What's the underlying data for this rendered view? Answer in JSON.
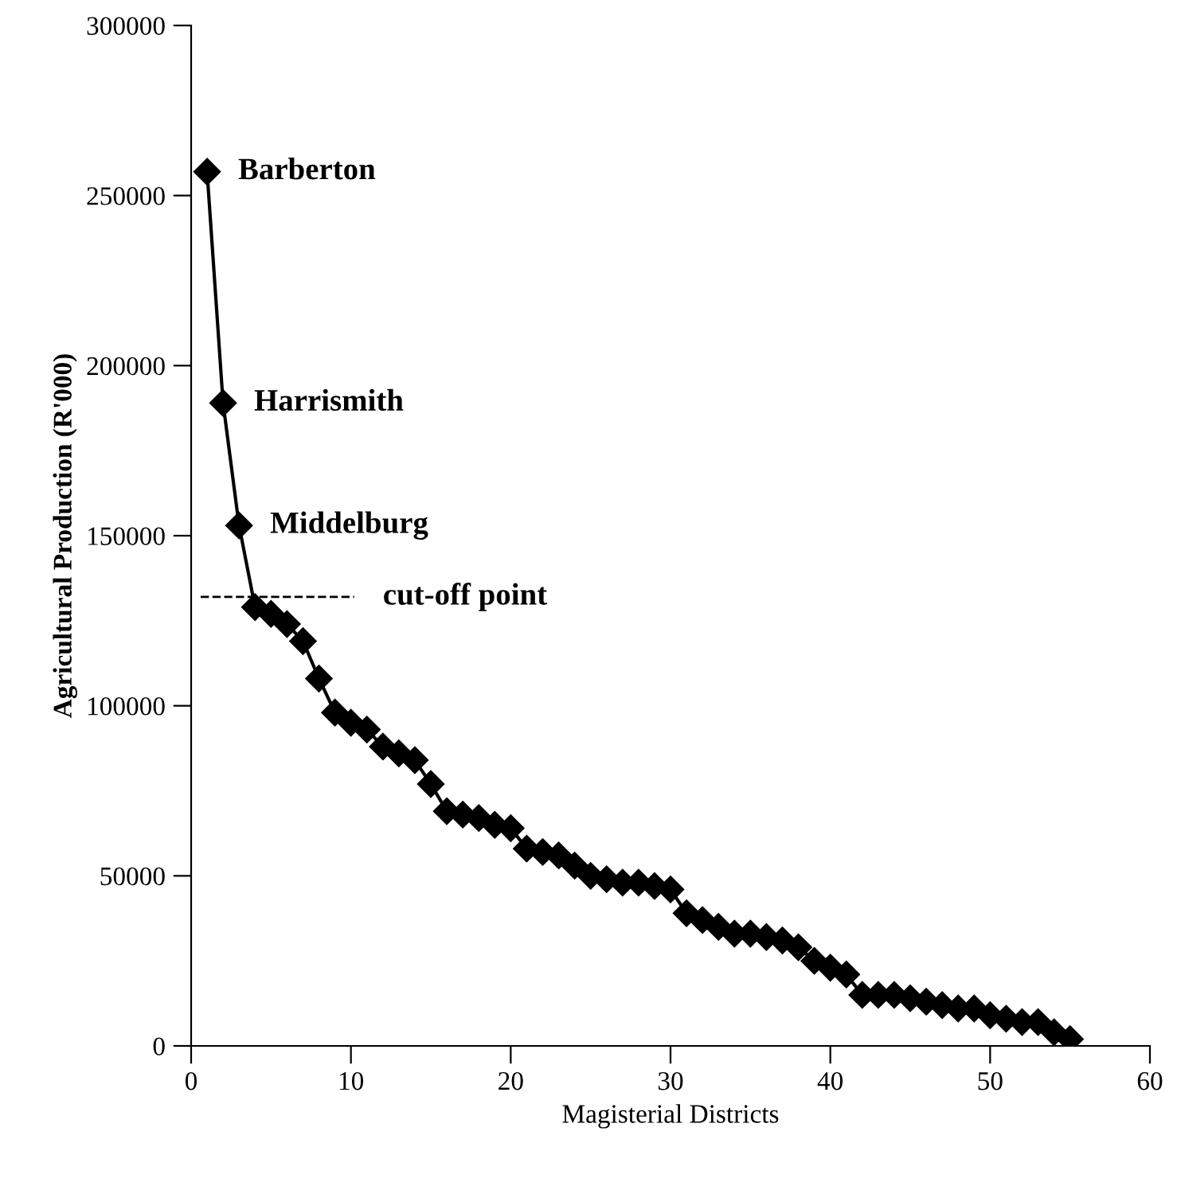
{
  "chart_data": {
    "type": "line",
    "xlabel": "Magisterial Districts",
    "ylabel": "Agricultural Production (R'000)",
    "x": [
      1,
      2,
      3,
      4,
      5,
      6,
      7,
      8,
      9,
      10,
      11,
      12,
      13,
      14,
      15,
      16,
      17,
      18,
      19,
      20,
      21,
      22,
      23,
      24,
      25,
      26,
      27,
      28,
      29,
      30,
      31,
      32,
      33,
      34,
      35,
      36,
      37,
      38,
      39,
      40,
      41,
      42,
      43,
      44,
      45,
      46,
      47,
      48,
      49,
      50,
      51,
      52,
      53,
      54,
      55
    ],
    "series": [
      {
        "color": "#000000",
        "values": [
          257000,
          189000,
          153000,
          129000,
          127000,
          124000,
          119000,
          108000,
          98000,
          95000,
          93000,
          88000,
          86000,
          84000,
          77000,
          69000,
          68000,
          67000,
          65000,
          64000,
          58000,
          57000,
          56000,
          53000,
          50000,
          49000,
          48000,
          48000,
          47000,
          46000,
          39000,
          37000,
          35000,
          33000,
          33000,
          32000,
          31000,
          29000,
          25000,
          23000,
          21000,
          15000,
          15000,
          15000,
          14000,
          13000,
          12000,
          11000,
          11000,
          9000,
          8000,
          7000,
          7000,
          4000,
          2000
        ]
      }
    ],
    "marker": "diamond",
    "line_style": "solid",
    "grid": false,
    "legend": false,
    "xlim": [
      0,
      60
    ],
    "xticks": [
      0,
      10,
      20,
      30,
      40,
      50,
      60
    ],
    "ylim": [
      0,
      300000
    ],
    "yticks": [
      0,
      50000,
      100000,
      150000,
      200000,
      250000,
      300000
    ],
    "ref_lines": [
      {
        "axis": "y",
        "value": 132000,
        "label": "cut-off point",
        "line_style": "dashed",
        "color": "#000000"
      }
    ],
    "annotations": [
      {
        "text": "Barberton",
        "x": 1,
        "y": 257000
      },
      {
        "text": "Harrismith",
        "x": 2,
        "y": 189000
      },
      {
        "text": "Middelburg",
        "x": 3,
        "y": 153000
      }
    ]
  }
}
